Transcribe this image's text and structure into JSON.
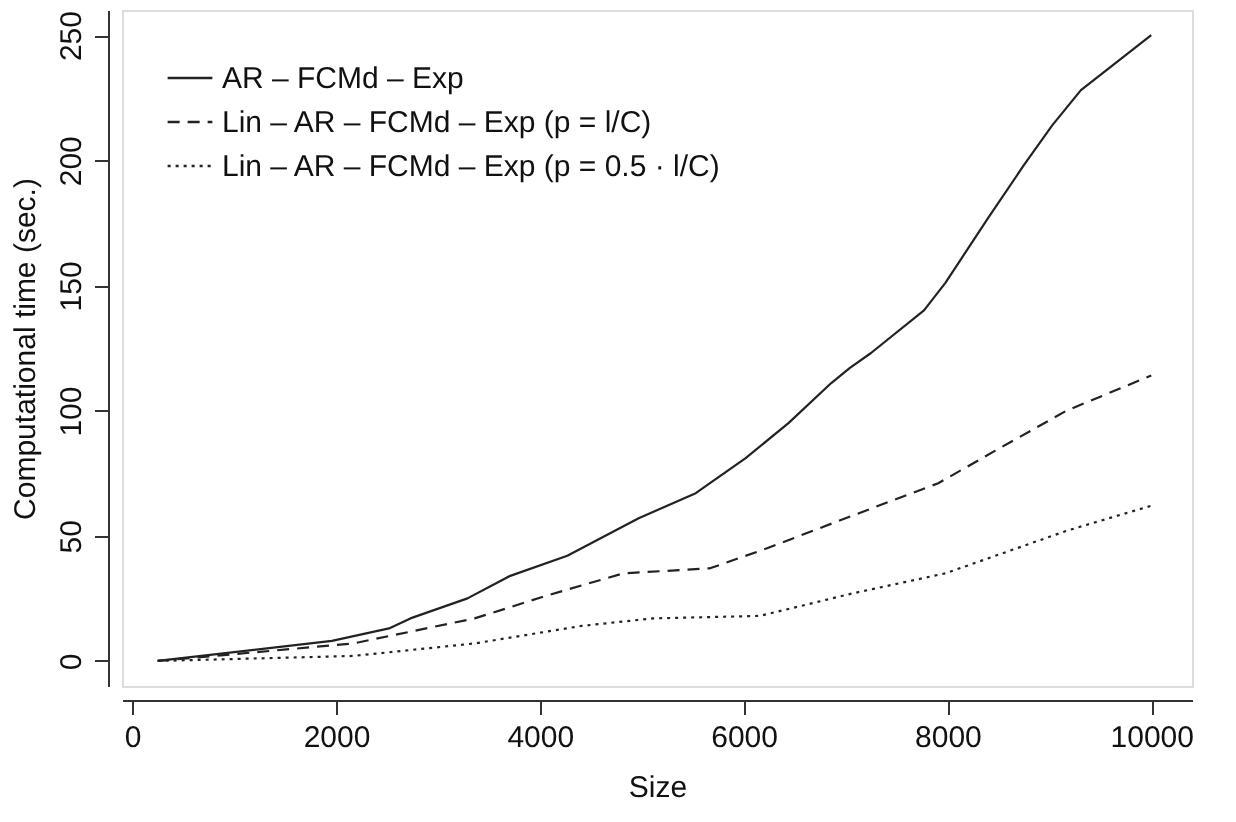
{
  "chart_data": {
    "type": "line",
    "xlabel": "Size",
    "ylabel": "Computational time (sec.)",
    "xlim": [
      -100,
      10400
    ],
    "ylim": [
      -10,
      260
    ],
    "xticks": [
      0,
      2000,
      4000,
      6000,
      8000,
      10000
    ],
    "yticks": [
      0,
      50,
      100,
      150,
      200,
      250
    ],
    "grid": false,
    "legend": "top left",
    "marker": "none",
    "series": [
      {
        "name": "AR – FCMd – Exp",
        "color": "#222222",
        "line_style": "solid",
        "x": [
          250,
          1960,
          2520,
          2730,
          3290,
          3710,
          4270,
          4970,
          5530,
          6020,
          6440,
          6860,
          7040,
          7250,
          7770,
          7980,
          8400,
          8750,
          9030,
          9310,
          10000
        ],
        "values": [
          0,
          8,
          13,
          17,
          25,
          34,
          42,
          57,
          67,
          81,
          95,
          111,
          117,
          123,
          140,
          151,
          177,
          198,
          214,
          228,
          250
        ]
      },
      {
        "name": "Lin – AR – FCMd – Exp (p = l/C)",
        "color": "#222222",
        "line_style": "dashed",
        "x": [
          250,
          2170,
          3360,
          4060,
          4820,
          5670,
          6230,
          7000,
          7910,
          8470,
          9170,
          10000
        ],
        "values": [
          0,
          7,
          17,
          26,
          35,
          37,
          45,
          57,
          71,
          84,
          100,
          114
        ]
      },
      {
        "name": "Lin – AR – FCMd – Exp (p = 0.5 · l/C)",
        "color": "#222222",
        "line_style": "dotted",
        "x": [
          250,
          2170,
          3360,
          4410,
          5110,
          6160,
          7070,
          7980,
          8540,
          9170,
          10000
        ],
        "values": [
          0,
          2,
          7,
          14,
          17,
          18,
          27,
          35,
          43,
          52,
          62
        ]
      }
    ]
  }
}
